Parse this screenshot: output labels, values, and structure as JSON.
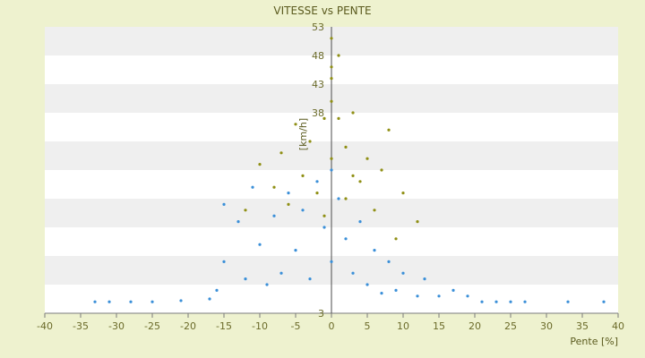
{
  "chart_data": {
    "type": "scatter",
    "title": "VITESSE vs PENTE",
    "xlabel": "Pente [%]",
    "ylabel": "[km/h]",
    "xlim": [
      -40,
      40
    ],
    "ylim": [
      3,
      53
    ],
    "x_ticks": [
      -40,
      -35,
      -30,
      -25,
      -20,
      -15,
      -10,
      -5,
      0,
      5,
      10,
      15,
      20,
      25,
      30,
      35,
      40
    ],
    "y_ticks": [
      3,
      8,
      13,
      18,
      23,
      28,
      33,
      38,
      43,
      48,
      53
    ],
    "y_tick_labels": [
      "3",
      "",
      "",
      "",
      "",
      "",
      "",
      "38",
      "43",
      "48",
      "53"
    ],
    "grid": "alternating horizontal bands",
    "colors": {
      "page_bg": "#eef2cf",
      "band_light": "#ffffff",
      "band_dark": "#efefef",
      "series_blue": "#3a8fd8",
      "series_olive": "#8f8f14"
    },
    "series": [
      {
        "color": "#3a8fd8",
        "points": [
          [
            -33,
            5
          ],
          [
            -31,
            5
          ],
          [
            -28,
            5
          ],
          [
            -25,
            5
          ],
          [
            -21,
            5.2
          ],
          [
            -17,
            5.5
          ],
          [
            -16,
            7
          ],
          [
            -15,
            12
          ],
          [
            -15,
            22
          ],
          [
            -13,
            19
          ],
          [
            -12,
            9
          ],
          [
            -11,
            25
          ],
          [
            -10,
            15
          ],
          [
            -9,
            8
          ],
          [
            -8,
            20
          ],
          [
            -7,
            10
          ],
          [
            -6,
            24
          ],
          [
            -5,
            14
          ],
          [
            -4,
            21
          ],
          [
            -3,
            9
          ],
          [
            -2,
            26
          ],
          [
            -1,
            18
          ],
          [
            0,
            28
          ],
          [
            0,
            12
          ],
          [
            1,
            23
          ],
          [
            2,
            16
          ],
          [
            3,
            10
          ],
          [
            4,
            19
          ],
          [
            5,
            8
          ],
          [
            6,
            14
          ],
          [
            7,
            6.5
          ],
          [
            8,
            12
          ],
          [
            9,
            7
          ],
          [
            10,
            10
          ],
          [
            12,
            6
          ],
          [
            13,
            9
          ],
          [
            15,
            6
          ],
          [
            17,
            7
          ],
          [
            19,
            6
          ],
          [
            21,
            5
          ],
          [
            23,
            5
          ],
          [
            25,
            5
          ],
          [
            27,
            5
          ],
          [
            33,
            5
          ],
          [
            38,
            5
          ]
        ]
      },
      {
        "color": "#8f8f14",
        "points": [
          [
            0,
            51
          ],
          [
            1,
            48
          ],
          [
            0,
            46
          ],
          [
            0,
            44
          ],
          [
            0,
            40
          ],
          [
            -1,
            37
          ],
          [
            1,
            37
          ],
          [
            3,
            38
          ],
          [
            -5,
            36
          ],
          [
            8,
            35
          ],
          [
            -3,
            33
          ],
          [
            2,
            32
          ],
          [
            -7,
            31
          ],
          [
            5,
            30
          ],
          [
            -10,
            29
          ],
          [
            7,
            28
          ],
          [
            -4,
            27
          ],
          [
            4,
            26
          ],
          [
            -8,
            25
          ],
          [
            10,
            24
          ],
          [
            -2,
            24
          ],
          [
            2,
            23
          ],
          [
            -6,
            22
          ],
          [
            6,
            21
          ],
          [
            -12,
            21
          ],
          [
            12,
            19
          ],
          [
            0,
            30
          ],
          [
            3,
            27
          ],
          [
            -1,
            20
          ],
          [
            9,
            16
          ]
        ]
      }
    ]
  }
}
